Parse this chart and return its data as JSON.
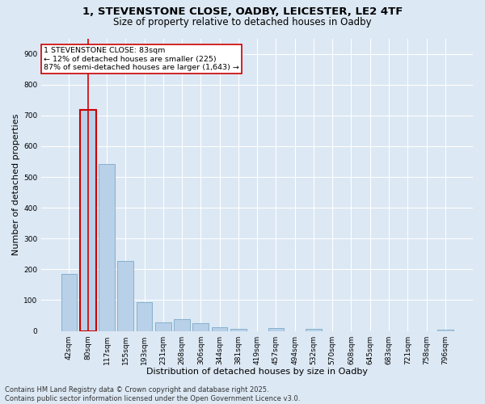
{
  "title_line1": "1, STEVENSTONE CLOSE, OADBY, LEICESTER, LE2 4TF",
  "title_line2": "Size of property relative to detached houses in Oadby",
  "xlabel": "Distribution of detached houses by size in Oadby",
  "ylabel": "Number of detached properties",
  "footer_line1": "Contains HM Land Registry data © Crown copyright and database right 2025.",
  "footer_line2": "Contains public sector information licensed under the Open Government Licence v3.0.",
  "categories": [
    "42sqm",
    "80sqm",
    "117sqm",
    "155sqm",
    "193sqm",
    "231sqm",
    "268sqm",
    "306sqm",
    "344sqm",
    "381sqm",
    "419sqm",
    "457sqm",
    "494sqm",
    "532sqm",
    "570sqm",
    "608sqm",
    "645sqm",
    "683sqm",
    "721sqm",
    "758sqm",
    "796sqm"
  ],
  "values": [
    185,
    718,
    543,
    228,
    93,
    28,
    37,
    25,
    12,
    8,
    0,
    10,
    0,
    8,
    0,
    0,
    0,
    0,
    0,
    0,
    5
  ],
  "bar_color": "#b8d0e8",
  "bar_edge_color": "#7aaac8",
  "highlight_bar_index": 1,
  "highlight_bar_edge_color": "#cc0000",
  "annotation_text": "1 STEVENSTONE CLOSE: 83sqm\n← 12% of detached houses are smaller (225)\n87% of semi-detached houses are larger (1,643) →",
  "annotation_box_color": "#ffffff",
  "annotation_box_edge_color": "#cc0000",
  "vline_color": "#cc0000",
  "ylim": [
    0,
    950
  ],
  "yticks": [
    0,
    100,
    200,
    300,
    400,
    500,
    600,
    700,
    800,
    900
  ],
  "background_color": "#dce8f4",
  "plot_background_color": "#dce8f4",
  "grid_color": "#ffffff",
  "title_fontsize": 9.5,
  "subtitle_fontsize": 8.5,
  "axis_label_fontsize": 8,
  "tick_fontsize": 6.5,
  "footer_fontsize": 6
}
